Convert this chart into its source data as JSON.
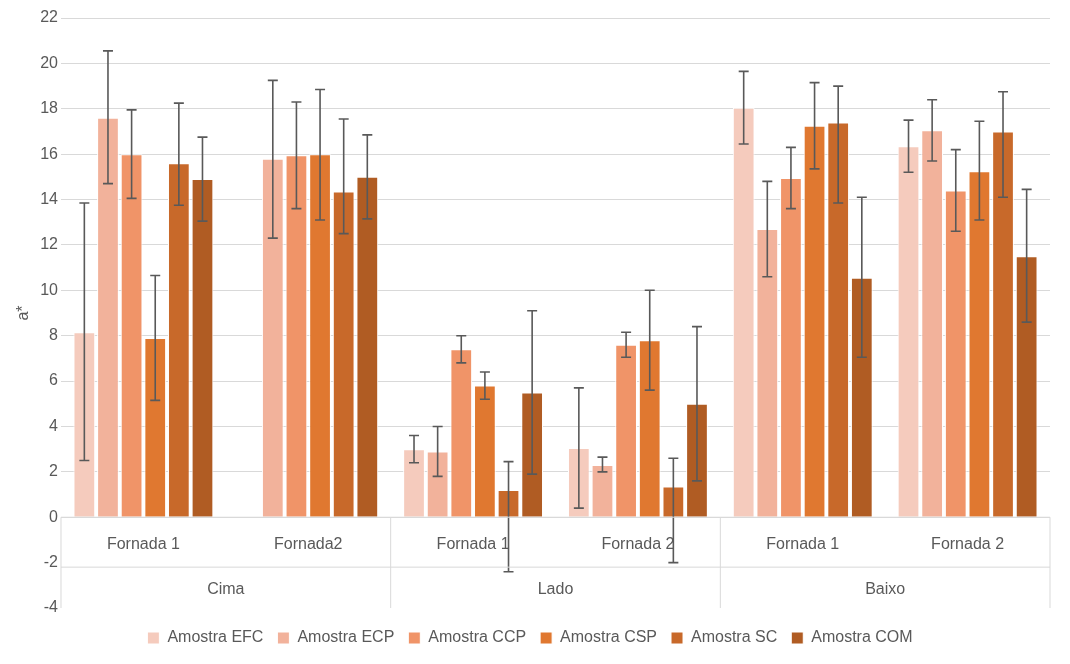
{
  "chart_data": {
    "type": "bar",
    "ylabel": "a*",
    "categories": [
      "Fornada 1",
      "Fornada2",
      "Fornada 1",
      "Fornada 2",
      "Fornada 1",
      "Fornada 2"
    ],
    "annotations": [
      "Cima",
      "Lado",
      "Baixo"
    ],
    "ylim": [
      -4,
      22
    ],
    "yticks": [
      -4,
      -2,
      0,
      2,
      4,
      6,
      8,
      10,
      12,
      14,
      16,
      18,
      20,
      22
    ],
    "grid": "y",
    "legend": "bottom",
    "series": [
      {
        "name": "Amostra EFC",
        "color": "#f5cbbd",
        "values": [
          8.15,
          null,
          3.0,
          3.05,
          18.05,
          16.35
        ],
        "errors": [
          [
            2.5,
            13.85
          ],
          null,
          [
            2.4,
            3.6
          ],
          [
            0.4,
            5.7
          ],
          [
            16.45,
            19.65
          ],
          [
            15.2,
            17.5
          ]
        ]
      },
      {
        "name": "Amostra ECP",
        "color": "#f2b29b",
        "values": [
          17.6,
          15.8,
          2.9,
          2.3,
          12.7,
          17.05
        ],
        "errors": [
          [
            14.7,
            20.55
          ],
          [
            12.3,
            19.25
          ],
          [
            1.8,
            4.0
          ],
          [
            2.0,
            2.65
          ],
          [
            10.6,
            14.8
          ],
          [
            15.7,
            18.4
          ]
        ]
      },
      {
        "name": "Amostra CCP",
        "color": "#f09468",
        "values": [
          16.0,
          15.95,
          7.4,
          7.6,
          14.95,
          14.4
        ],
        "errors": [
          [
            14.05,
            17.95
          ],
          [
            13.6,
            18.3
          ],
          [
            6.8,
            8.0
          ],
          [
            7.05,
            8.15
          ],
          [
            13.6,
            16.3
          ],
          [
            12.6,
            16.2
          ]
        ]
      },
      {
        "name": "Amostra CSP",
        "color": "#e07830",
        "values": [
          7.9,
          16.0,
          5.8,
          7.8,
          17.25,
          15.25
        ],
        "errors": [
          [
            5.15,
            10.65
          ],
          [
            13.1,
            18.85
          ],
          [
            5.2,
            6.4
          ],
          [
            5.6,
            10.0
          ],
          [
            15.35,
            19.15
          ],
          [
            13.1,
            17.45
          ]
        ]
      },
      {
        "name": "Amostra SC",
        "color": "#c8692a",
        "values": [
          15.6,
          14.35,
          1.2,
          1.35,
          17.4,
          17.0
        ],
        "errors": [
          [
            13.75,
            18.25
          ],
          [
            12.5,
            17.55
          ],
          [
            -2.4,
            2.45
          ],
          [
            -2.0,
            2.6
          ],
          [
            13.85,
            19.0
          ],
          [
            14.1,
            18.75
          ]
        ]
      },
      {
        "name": "Amostra COM",
        "color": "#b05c23",
        "values": [
          14.9,
          15.0,
          5.5,
          5.0,
          10.55,
          11.5
        ],
        "errors": [
          [
            13.05,
            16.75
          ],
          [
            13.15,
            16.85
          ],
          [
            1.9,
            9.1
          ],
          [
            1.6,
            8.4
          ],
          [
            7.05,
            14.1
          ],
          [
            8.6,
            14.45
          ]
        ]
      }
    ]
  }
}
